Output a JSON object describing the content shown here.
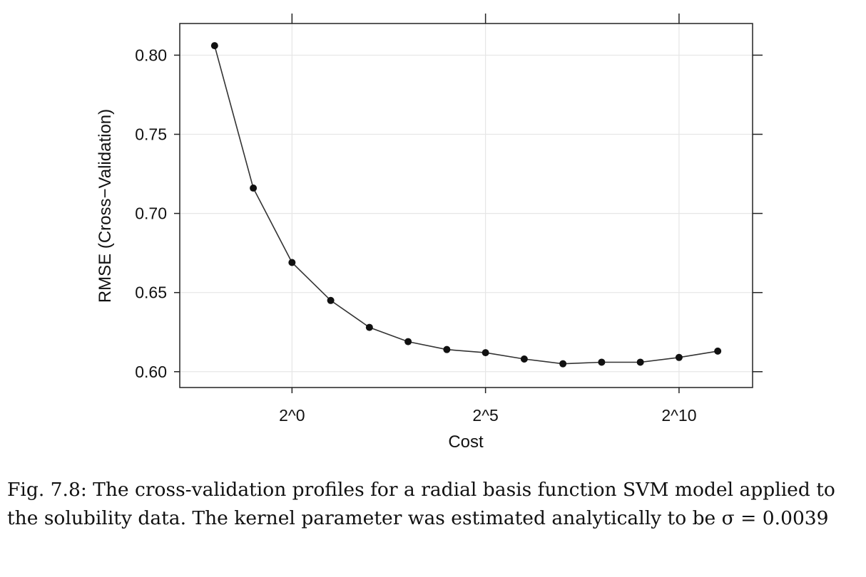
{
  "chart_data": {
    "type": "line",
    "xlabel": "Cost",
    "ylabel": "RMSE (Cross−Validation)",
    "x_scale": "log2",
    "x_exponents": [
      -2,
      -1,
      0,
      1,
      2,
      3,
      4,
      5,
      6,
      7,
      8,
      9,
      10,
      11
    ],
    "series": [
      {
        "values": [
          0.806,
          0.716,
          0.669,
          0.645,
          0.628,
          0.619,
          0.614,
          0.612,
          0.608,
          0.605,
          0.606,
          0.606,
          0.609,
          0.613
        ]
      }
    ],
    "x_ticks": [
      {
        "exponent": 0,
        "label": "2^0"
      },
      {
        "exponent": 5,
        "label": "2^5"
      },
      {
        "exponent": 10,
        "label": "2^10"
      }
    ],
    "y_ticks": [
      {
        "value": 0.6,
        "label": "0.60"
      },
      {
        "value": 0.65,
        "label": "0.65"
      },
      {
        "value": 0.7,
        "label": "0.70"
      },
      {
        "value": 0.75,
        "label": "0.75"
      },
      {
        "value": 0.8,
        "label": "0.80"
      }
    ],
    "xlim_exponent": [
      -2.9,
      11.9
    ],
    "ylim": [
      0.59,
      0.82
    ],
    "grid": true,
    "line_color": "#333333",
    "point_color": "#111111",
    "grid_color": "#e6e6e6"
  },
  "caption": {
    "text": "Fig. 7.8: The cross-validation profiles for a radial basis function SVM model applied to the solubility data. The kernel parameter was estimated analytically to be σ = 0.0039"
  }
}
